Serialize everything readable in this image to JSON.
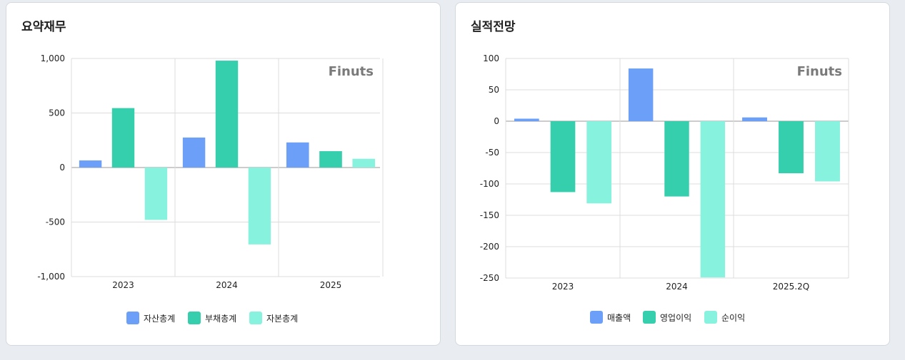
{
  "cards": [
    {
      "title": "요약재무",
      "watermark": "Finuts",
      "chart_data": {
        "type": "bar",
        "categories": [
          "2023",
          "2024",
          "2025"
        ],
        "series": [
          {
            "name": "자산총계",
            "color": "#6b9ff8",
            "values": [
              65,
              275,
              230
            ]
          },
          {
            "name": "부채총계",
            "color": "#35cfae",
            "values": [
              545,
              980,
              150
            ]
          },
          {
            "name": "자본총계",
            "color": "#87f2dd",
            "values": [
              -480,
              -705,
              80
            ]
          }
        ],
        "yticks": [
          1000,
          500,
          0,
          -500,
          -1000
        ],
        "ytick_labels": [
          "1,000",
          "500",
          "0",
          "-500",
          "-1,000"
        ],
        "ylim": [
          -1000,
          1000
        ],
        "grid": true,
        "legend": "bottom"
      }
    },
    {
      "title": "실적전망",
      "watermark": "Finuts",
      "chart_data": {
        "type": "bar",
        "categories": [
          "2023",
          "2024",
          "2025.2Q"
        ],
        "series": [
          {
            "name": "매출액",
            "color": "#6b9ff8",
            "values": [
              4,
              84,
              6
            ]
          },
          {
            "name": "영업이익",
            "color": "#35cfae",
            "values": [
              -113,
              -120,
              -83
            ]
          },
          {
            "name": "순이익",
            "color": "#87f2dd",
            "values": [
              -131,
              -249,
              -96
            ]
          }
        ],
        "yticks": [
          100,
          50,
          0,
          -50,
          -100,
          -150,
          -200,
          -250
        ],
        "ytick_labels": [
          "100",
          "50",
          "0",
          "-50",
          "-100",
          "-150",
          "-200",
          "-250"
        ],
        "ylim": [
          -250,
          100
        ],
        "grid": true,
        "legend": "bottom"
      }
    }
  ]
}
